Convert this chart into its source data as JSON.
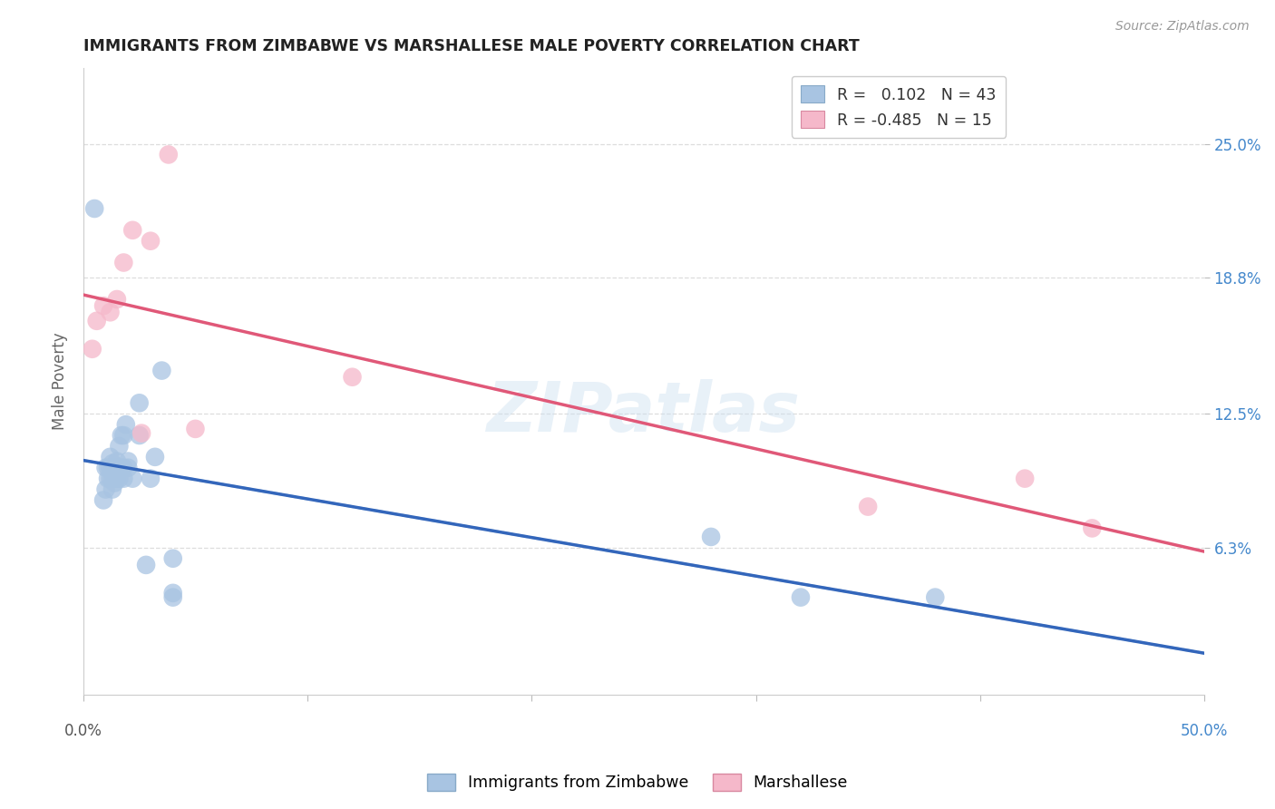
{
  "title": "IMMIGRANTS FROM ZIMBABWE VS MARSHALLESE MALE POVERTY CORRELATION CHART",
  "source": "Source: ZipAtlas.com",
  "ylabel": "Male Poverty",
  "ytick_labels": [
    "25.0%",
    "18.8%",
    "12.5%",
    "6.3%"
  ],
  "ytick_values": [
    0.25,
    0.188,
    0.125,
    0.063
  ],
  "xlim": [
    0.0,
    0.5
  ],
  "ylim": [
    -0.005,
    0.285
  ],
  "legend_r1": "R =   0.102   N = 43",
  "legend_r2": "R = -0.485   N = 15",
  "scatter_color_zim": "#a8c4e2",
  "scatter_color_marsh": "#f5b8ca",
  "line_color_zim": "#3366bb",
  "line_color_marsh": "#e05878",
  "dashed_color": "#b0ccdf",
  "watermark": "ZIPatlas",
  "zimbabwe_x": [
    0.005,
    0.009,
    0.01,
    0.01,
    0.011,
    0.011,
    0.012,
    0.012,
    0.012,
    0.013,
    0.013,
    0.013,
    0.013,
    0.014,
    0.014,
    0.014,
    0.015,
    0.015,
    0.015,
    0.015,
    0.016,
    0.016,
    0.017,
    0.017,
    0.018,
    0.018,
    0.018,
    0.019,
    0.02,
    0.02,
    0.022,
    0.025,
    0.025,
    0.028,
    0.03,
    0.032,
    0.035,
    0.04,
    0.04,
    0.04,
    0.28,
    0.32,
    0.38
  ],
  "zimbabwe_y": [
    0.22,
    0.085,
    0.09,
    0.1,
    0.095,
    0.1,
    0.095,
    0.1,
    0.105,
    0.09,
    0.095,
    0.098,
    0.102,
    0.093,
    0.095,
    0.1,
    0.095,
    0.098,
    0.1,
    0.103,
    0.095,
    0.11,
    0.1,
    0.115,
    0.095,
    0.1,
    0.115,
    0.12,
    0.1,
    0.103,
    0.095,
    0.115,
    0.13,
    0.055,
    0.095,
    0.105,
    0.145,
    0.04,
    0.042,
    0.058,
    0.068,
    0.04,
    0.04
  ],
  "marshallese_x": [
    0.004,
    0.006,
    0.009,
    0.012,
    0.015,
    0.018,
    0.022,
    0.026,
    0.03,
    0.038,
    0.05,
    0.12,
    0.35,
    0.42,
    0.45
  ],
  "marshallese_y": [
    0.155,
    0.168,
    0.175,
    0.172,
    0.178,
    0.195,
    0.21,
    0.116,
    0.205,
    0.245,
    0.118,
    0.142,
    0.082,
    0.095,
    0.072
  ]
}
